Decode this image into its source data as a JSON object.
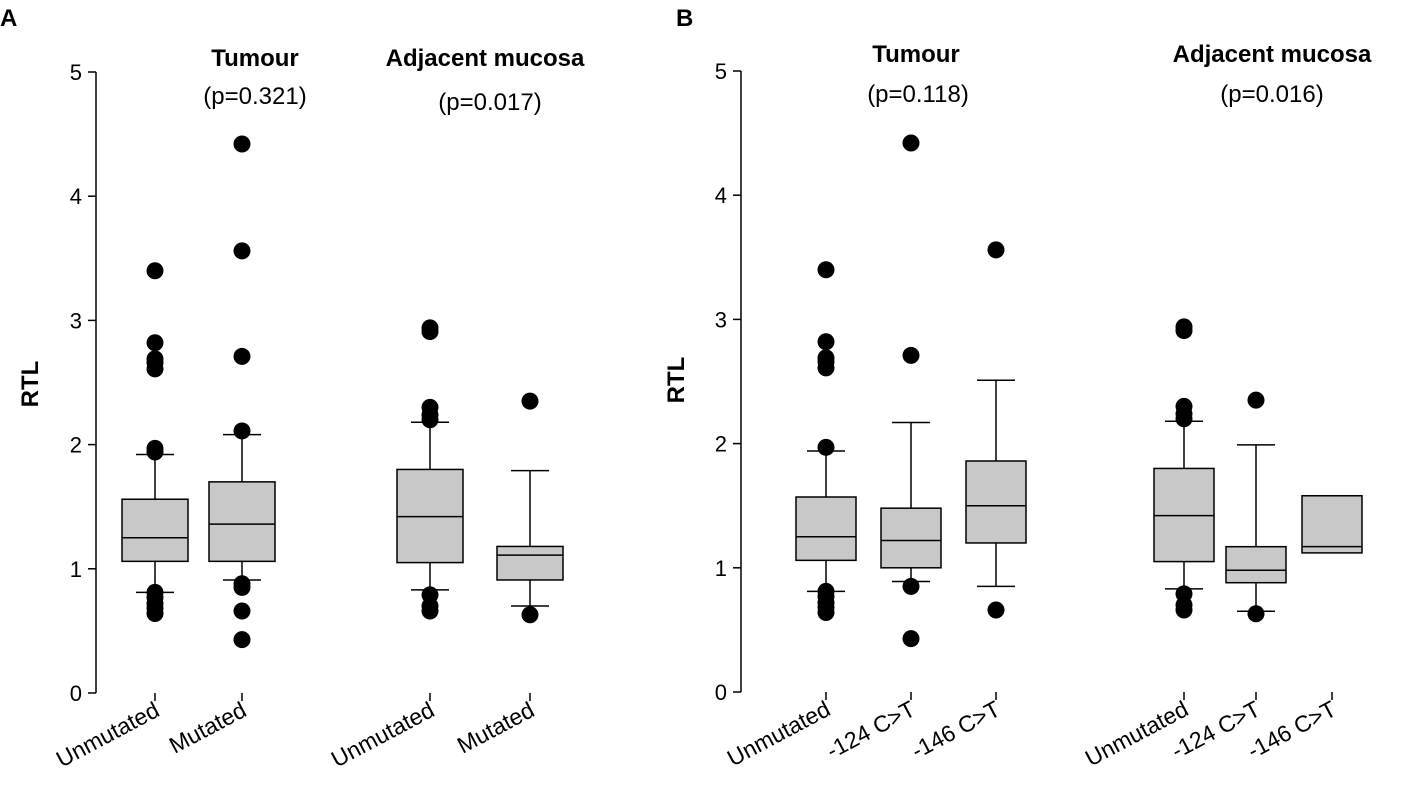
{
  "chart_data": [
    {
      "type": "boxplot",
      "panel": "A",
      "ylabel": "RTL",
      "ylim": [
        0,
        5
      ],
      "yticks": [
        0,
        1,
        2,
        3,
        4,
        5
      ],
      "groups": [
        {
          "title": "Tumour",
          "pvalue": "(p=0.321)"
        },
        {
          "title": "Adjacent mucosa",
          "pvalue": "(p=0.017)"
        }
      ],
      "boxes": [
        {
          "label": "Unmutated",
          "group": 0,
          "q1": 1.06,
          "median": 1.25,
          "q3": 1.56,
          "whisker_low": 0.81,
          "whisker_high": 1.92,
          "outliers": [
            0.64,
            0.68,
            0.72,
            0.77,
            0.81,
            1.94,
            1.97,
            2.61,
            2.66,
            2.69,
            2.82,
            3.4
          ]
        },
        {
          "label": "Mutated",
          "group": 0,
          "q1": 1.06,
          "median": 1.36,
          "q3": 1.7,
          "whisker_low": 0.91,
          "whisker_high": 2.08,
          "outliers": [
            0.43,
            0.66,
            0.85,
            0.88,
            2.11,
            2.71,
            3.56,
            4.42
          ]
        },
        {
          "label": "Unmutated",
          "group": 1,
          "q1": 1.05,
          "median": 1.42,
          "q3": 1.8,
          "whisker_low": 0.83,
          "whisker_high": 2.18,
          "outliers": [
            0.66,
            0.7,
            0.79,
            2.2,
            2.24,
            2.3,
            2.91,
            2.94
          ]
        },
        {
          "label": "Mutated",
          "group": 1,
          "q1": 0.91,
          "median": 1.11,
          "q3": 1.18,
          "whisker_low": 0.7,
          "whisker_high": 1.79,
          "outliers": [
            0.63,
            2.35
          ]
        }
      ]
    },
    {
      "type": "boxplot",
      "panel": "B",
      "ylabel": "RTL",
      "ylim": [
        0,
        5
      ],
      "yticks": [
        0,
        1,
        2,
        3,
        4,
        5
      ],
      "groups": [
        {
          "title": "Tumour",
          "pvalue": "(p=0.118)"
        },
        {
          "title": "Adjacent mucosa",
          "pvalue": "(p=0.016)"
        }
      ],
      "boxes": [
        {
          "label": "Unmutated",
          "group": 0,
          "q1": 1.06,
          "median": 1.25,
          "q3": 1.57,
          "whisker_low": 0.81,
          "whisker_high": 1.94,
          "outliers": [
            0.64,
            0.68,
            0.72,
            0.77,
            0.81,
            1.97,
            2.61,
            2.66,
            2.69,
            2.82,
            3.4
          ]
        },
        {
          "label": "-124 C>T",
          "group": 0,
          "q1": 1.0,
          "median": 1.22,
          "q3": 1.48,
          "whisker_low": 0.89,
          "whisker_high": 2.17,
          "outliers": [
            0.43,
            0.85,
            2.71,
            4.42
          ]
        },
        {
          "label": "-146 C>T",
          "group": 0,
          "q1": 1.2,
          "median": 1.5,
          "q3": 1.86,
          "whisker_low": 0.85,
          "whisker_high": 2.51,
          "outliers": [
            0.66,
            3.56
          ]
        },
        {
          "label": "Unmutated",
          "group": 1,
          "q1": 1.05,
          "median": 1.42,
          "q3": 1.8,
          "whisker_low": 0.83,
          "whisker_high": 2.18,
          "outliers": [
            0.66,
            0.7,
            0.79,
            2.2,
            2.24,
            2.3,
            2.91,
            2.94
          ]
        },
        {
          "label": "-124 C>T",
          "group": 1,
          "q1": 0.88,
          "median": 0.98,
          "q3": 1.17,
          "whisker_low": 0.65,
          "whisker_high": 1.99,
          "outliers": [
            0.63,
            2.35
          ]
        },
        {
          "label": "-146 C>T",
          "group": 1,
          "q1": 1.12,
          "median": 1.17,
          "q3": 1.58,
          "whisker_low": null,
          "whisker_high": null,
          "outliers": []
        }
      ]
    }
  ]
}
